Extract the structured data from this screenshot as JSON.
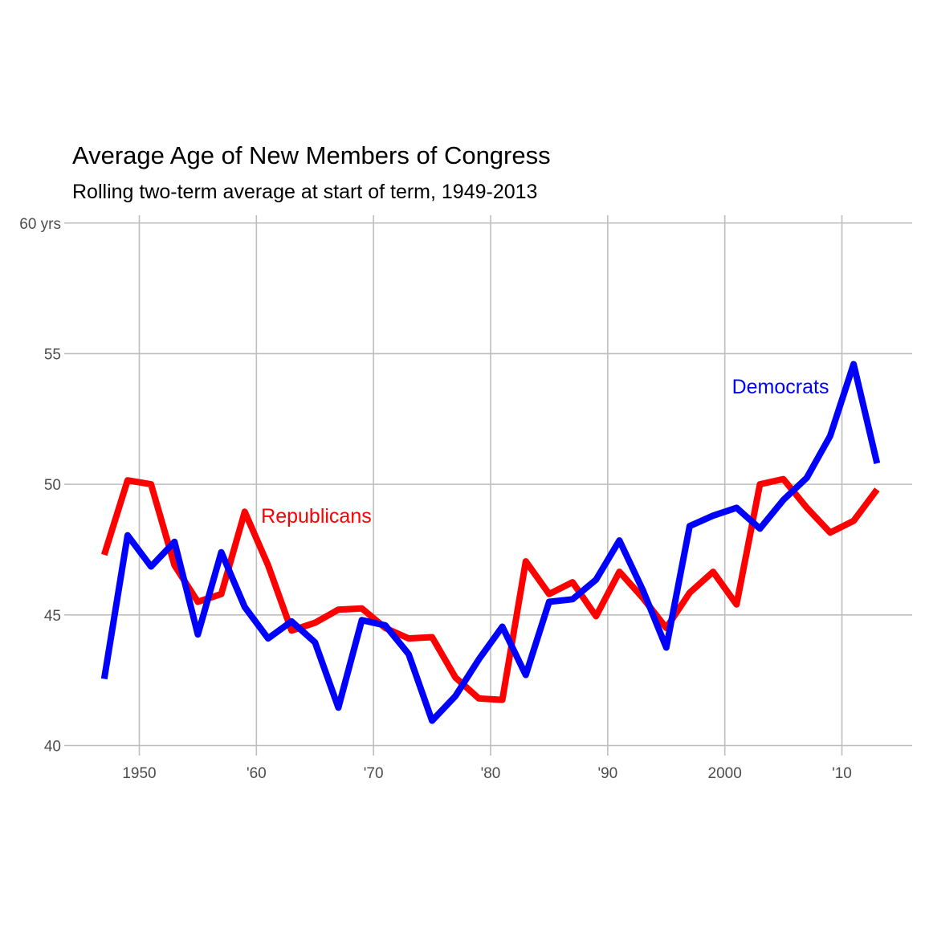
{
  "chart_data": {
    "type": "line",
    "title": "Average Age of New Members of Congress",
    "subtitle": "Rolling two-term average at start of term, 1949-2013",
    "xlabel": "",
    "ylabel": "",
    "xlim": [
      1944,
      2016
    ],
    "ylim": [
      39.8,
      60.3
    ],
    "x_ticks": [
      {
        "value": 1950,
        "label": "1950"
      },
      {
        "value": 1960,
        "label": "'60"
      },
      {
        "value": 1970,
        "label": "'70"
      },
      {
        "value": 1980,
        "label": "'80"
      },
      {
        "value": 1990,
        "label": "'90"
      },
      {
        "value": 2000,
        "label": "2000"
      },
      {
        "value": 2010,
        "label": "'10"
      }
    ],
    "y_ticks": [
      {
        "value": 40,
        "label": "40"
      },
      {
        "value": 45,
        "label": "45"
      },
      {
        "value": 50,
        "label": "50"
      },
      {
        "value": 55,
        "label": "55"
      },
      {
        "value": 60,
        "label": "60 yrs"
      }
    ],
    "grid": true,
    "legend": "none",
    "x": [
      1947,
      1949,
      1951,
      1953,
      1955,
      1957,
      1959,
      1961,
      1963,
      1965,
      1967,
      1969,
      1971,
      1973,
      1975,
      1977,
      1979,
      1981,
      1983,
      1985,
      1987,
      1989,
      1991,
      1993,
      1995,
      1997,
      1999,
      2001,
      2003,
      2005,
      2007,
      2009,
      2011,
      2013
    ],
    "series": [
      {
        "name": "Republicans",
        "color": "#ff0000",
        "values": [
          47.3,
          50.15,
          50.0,
          46.9,
          45.5,
          45.8,
          48.95,
          46.9,
          44.4,
          44.7,
          45.2,
          45.25,
          44.5,
          44.1,
          44.15,
          42.6,
          41.8,
          41.75,
          47.05,
          45.8,
          46.25,
          44.95,
          46.65,
          45.65,
          44.5,
          45.85,
          46.65,
          45.4,
          50.0,
          50.2,
          49.1,
          48.15,
          48.6,
          49.8
        ],
        "label": {
          "text": "Republicans",
          "x": 1960.4,
          "y": 48.8,
          "anchor": "start"
        }
      },
      {
        "name": "Democrats",
        "color": "#0000ff",
        "values": [
          42.55,
          48.05,
          46.85,
          47.8,
          44.25,
          47.4,
          45.3,
          44.1,
          44.75,
          43.95,
          41.45,
          44.8,
          44.6,
          43.5,
          40.95,
          41.9,
          43.3,
          44.55,
          42.7,
          45.5,
          45.6,
          46.35,
          47.85,
          45.95,
          43.75,
          48.4,
          48.8,
          49.1,
          48.3,
          49.4,
          50.25,
          51.85,
          54.6,
          50.8
        ],
        "label": {
          "text": "Democrats",
          "x": 2008.9,
          "y": 53.75,
          "anchor": "end"
        }
      }
    ]
  }
}
